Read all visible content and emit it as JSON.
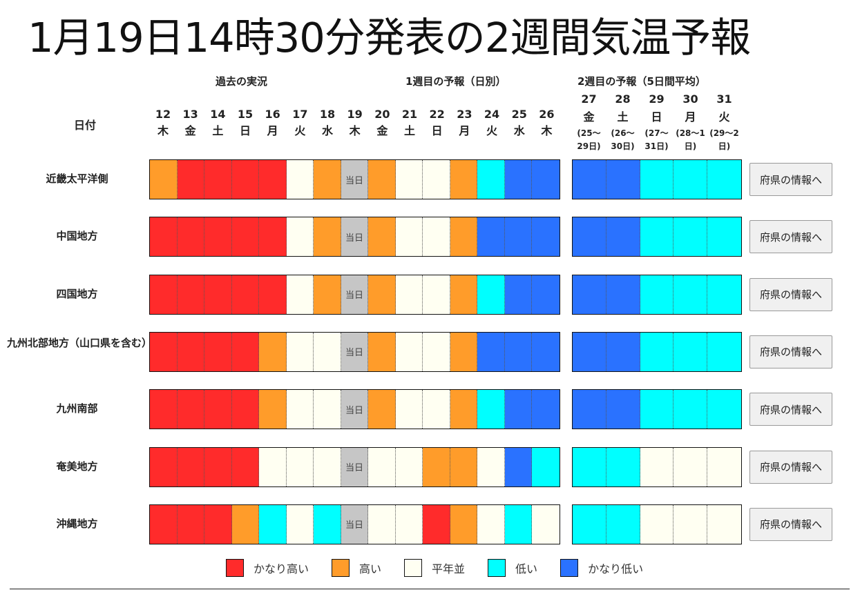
{
  "title": "1月19日14時30分発表の2週間気温予報",
  "section_headers": {
    "past": "過去の実況",
    "week1": "1週目の予報（日別）",
    "week2": "2週目の予報（5日間平均）"
  },
  "date_label": "日付",
  "daily_dates": [
    {
      "day": "12",
      "weekday": "木"
    },
    {
      "day": "13",
      "weekday": "金"
    },
    {
      "day": "14",
      "weekday": "土"
    },
    {
      "day": "15",
      "weekday": "日"
    },
    {
      "day": "16",
      "weekday": "月"
    },
    {
      "day": "17",
      "weekday": "火"
    },
    {
      "day": "18",
      "weekday": "水"
    },
    {
      "day": "19",
      "weekday": "木"
    },
    {
      "day": "20",
      "weekday": "金"
    },
    {
      "day": "21",
      "weekday": "土"
    },
    {
      "day": "22",
      "weekday": "日"
    },
    {
      "day": "23",
      "weekday": "月"
    },
    {
      "day": "24",
      "weekday": "火"
    },
    {
      "day": "25",
      "weekday": "水"
    },
    {
      "day": "26",
      "weekday": "木"
    }
  ],
  "week2_dates": [
    {
      "day": "27",
      "weekday": "金",
      "range": "(25～29日)"
    },
    {
      "day": "28",
      "weekday": "土",
      "range": "(26～30日)"
    },
    {
      "day": "29",
      "weekday": "日",
      "range": "(27～31日)"
    },
    {
      "day": "30",
      "weekday": "月",
      "range": "(28～1日)"
    },
    {
      "day": "31",
      "weekday": "火",
      "range": "(29～2日)"
    }
  ],
  "today_label": "当日",
  "button_label": "府県の情報へ",
  "categories": {
    "VH": {
      "label": "かなり高い",
      "color": "#ff2b2b"
    },
    "H": {
      "label": "高い",
      "color": "#ff9c2a"
    },
    "N": {
      "label": "平年並",
      "color": "#fffff2"
    },
    "L": {
      "label": "低い",
      "color": "#00ffff"
    },
    "VL": {
      "label": "かなり低い",
      "color": "#2a72ff"
    },
    "T": {
      "label": "当日",
      "color": "#c6c6c6"
    }
  },
  "legend_order": [
    "VH",
    "H",
    "N",
    "L",
    "VL"
  ],
  "legend": {
    "VH": "かなり高い",
    "H": "高い",
    "N": "平年並",
    "L": "低い",
    "VL": "かなり低い"
  },
  "regions": [
    {
      "name": "近畿太平洋側",
      "daily": [
        "H",
        "VH",
        "VH",
        "VH",
        "VH",
        "N",
        "H",
        "T",
        "H",
        "N",
        "N",
        "H",
        "L",
        "VL",
        "VL"
      ],
      "week2": [
        "VL",
        "VL",
        "L",
        "L",
        "L"
      ]
    },
    {
      "name": "中国地方",
      "daily": [
        "VH",
        "VH",
        "VH",
        "VH",
        "VH",
        "N",
        "H",
        "T",
        "H",
        "N",
        "N",
        "H",
        "VL",
        "VL",
        "VL"
      ],
      "week2": [
        "VL",
        "VL",
        "L",
        "L",
        "L"
      ]
    },
    {
      "name": "四国地方",
      "daily": [
        "VH",
        "VH",
        "VH",
        "VH",
        "VH",
        "N",
        "H",
        "T",
        "H",
        "N",
        "N",
        "H",
        "L",
        "VL",
        "VL"
      ],
      "week2": [
        "VL",
        "VL",
        "L",
        "L",
        "L"
      ]
    },
    {
      "name": "九州北部地方（山口県を含む）",
      "daily": [
        "VH",
        "VH",
        "VH",
        "VH",
        "H",
        "N",
        "N",
        "T",
        "H",
        "N",
        "N",
        "H",
        "VL",
        "VL",
        "VL"
      ],
      "week2": [
        "VL",
        "VL",
        "L",
        "L",
        "L"
      ]
    },
    {
      "name": "九州南部",
      "daily": [
        "VH",
        "VH",
        "VH",
        "VH",
        "H",
        "N",
        "N",
        "T",
        "H",
        "N",
        "N",
        "H",
        "L",
        "VL",
        "VL"
      ],
      "week2": [
        "VL",
        "VL",
        "L",
        "L",
        "L"
      ]
    },
    {
      "name": "奄美地方",
      "daily": [
        "VH",
        "VH",
        "VH",
        "VH",
        "N",
        "N",
        "N",
        "T",
        "N",
        "N",
        "H",
        "H",
        "N",
        "VL",
        "L"
      ],
      "week2": [
        "L",
        "L",
        "N",
        "N",
        "N"
      ]
    },
    {
      "name": "沖縄地方",
      "daily": [
        "VH",
        "VH",
        "VH",
        "H",
        "L",
        "N",
        "L",
        "T",
        "N",
        "N",
        "VH",
        "H",
        "N",
        "L",
        "N"
      ],
      "week2": [
        "L",
        "L",
        "N",
        "N",
        "N"
      ]
    }
  ]
}
